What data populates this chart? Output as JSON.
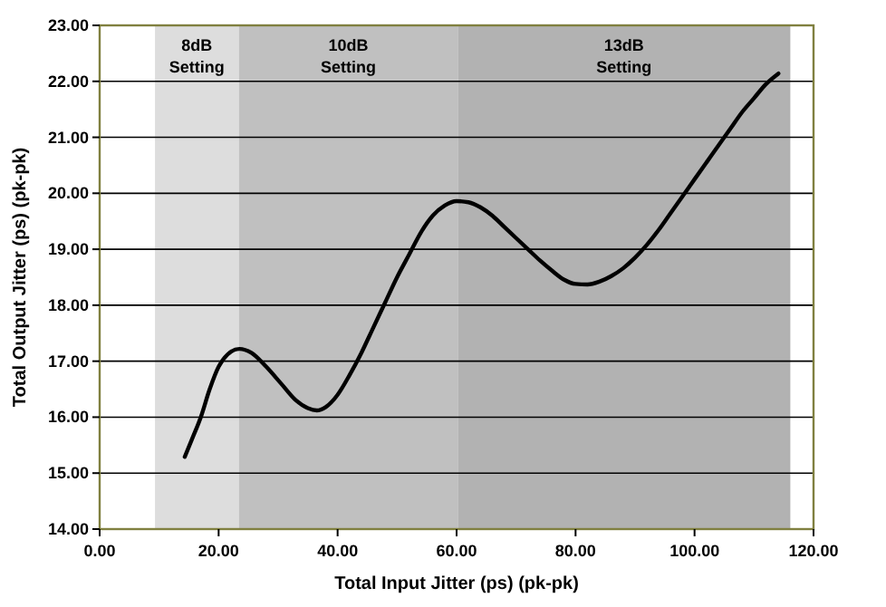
{
  "chart_data": {
    "type": "line",
    "xlabel": "Total Input Jitter (ps) (pk-pk)",
    "ylabel": "Total Output Jitter (ps) (pk-pk)",
    "xlim": [
      0,
      120
    ],
    "ylim": [
      14,
      23
    ],
    "xticks": [
      {
        "value": 0,
        "label": "0.00"
      },
      {
        "value": 20,
        "label": "20.00"
      },
      {
        "value": 40,
        "label": "40.00"
      },
      {
        "value": 60,
        "label": "60.00"
      },
      {
        "value": 80,
        "label": "80.00"
      },
      {
        "value": 100,
        "label": "100.00"
      },
      {
        "value": 120,
        "label": "120.00"
      }
    ],
    "yticks": [
      {
        "value": 14,
        "label": "14.00"
      },
      {
        "value": 15,
        "label": "15.00"
      },
      {
        "value": 16,
        "label": "16.00"
      },
      {
        "value": 17,
        "label": "17.00"
      },
      {
        "value": 18,
        "label": "18.00"
      },
      {
        "value": 19,
        "label": "19.00"
      },
      {
        "value": 20,
        "label": "20.00"
      },
      {
        "value": 21,
        "label": "21.00"
      },
      {
        "value": 22,
        "label": "22.00"
      },
      {
        "value": 23,
        "label": "23.00"
      }
    ],
    "grid": "y",
    "marker": "none",
    "line_style": "solid",
    "bands": [
      {
        "axis": "x",
        "from": 9.3,
        "to": 23.4,
        "label": "8dB Setting",
        "color": "#dddddd"
      },
      {
        "axis": "x",
        "from": 23.4,
        "to": 60.2,
        "label": "10dB Setting",
        "color": "#c0c0c0"
      },
      {
        "axis": "x",
        "from": 60.2,
        "to": 116.1,
        "label": "13dB Setting",
        "color": "#b2b2b2"
      }
    ],
    "series": [
      {
        "color": "#000000",
        "x": [
          14.3,
          15.5,
          17,
          18.5,
          20,
          21.5,
          23.5,
          25.5,
          28,
          30.5,
          33,
          35,
          36.5,
          38,
          40,
          42,
          44,
          46,
          48,
          50,
          52,
          54,
          56,
          58,
          60,
          62,
          64,
          66,
          68,
          70,
          72,
          74,
          76,
          78,
          80,
          82,
          84,
          86,
          88,
          90,
          92,
          94,
          96,
          98,
          100,
          102,
          104,
          106,
          108,
          110,
          112,
          114.1
        ],
        "values": [
          15.29,
          15.6,
          16.0,
          16.5,
          16.9,
          17.12,
          17.22,
          17.15,
          16.9,
          16.6,
          16.3,
          16.16,
          16.12,
          16.18,
          16.4,
          16.75,
          17.15,
          17.6,
          18.05,
          18.5,
          18.9,
          19.3,
          19.6,
          19.78,
          19.86,
          19.84,
          19.75,
          19.6,
          19.4,
          19.2,
          19.0,
          18.8,
          18.62,
          18.46,
          18.38,
          18.37,
          18.42,
          18.52,
          18.66,
          18.85,
          19.08,
          19.35,
          19.65,
          19.95,
          20.25,
          20.55,
          20.85,
          21.15,
          21.45,
          21.7,
          21.95,
          22.14
        ]
      }
    ]
  }
}
